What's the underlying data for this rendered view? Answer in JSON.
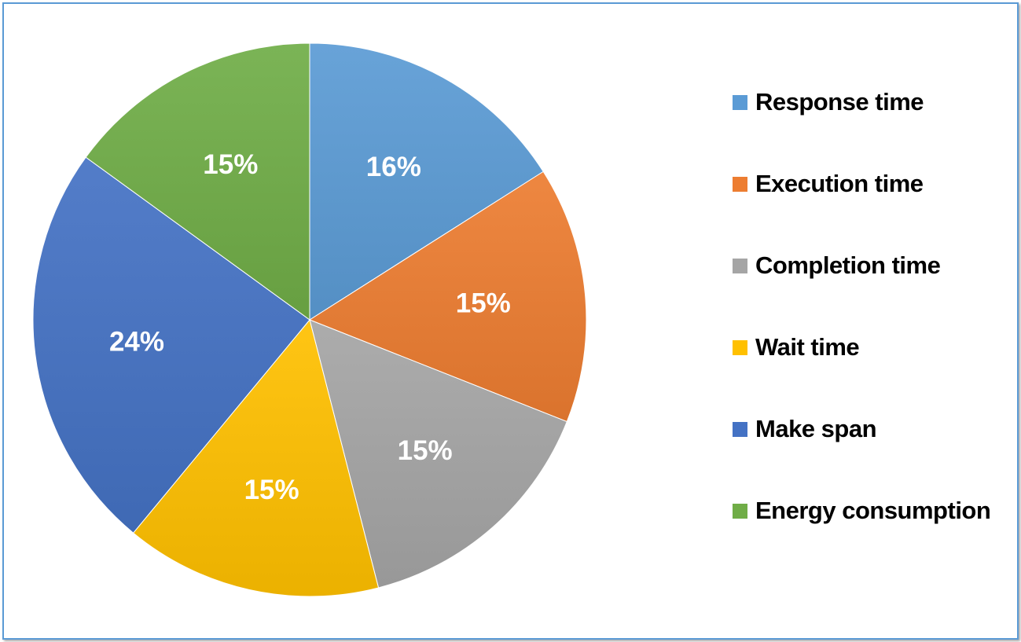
{
  "chart_data": {
    "type": "pie",
    "title": "",
    "start_angle_deg": 0,
    "direction": "clockwise",
    "legend_position": "right",
    "slices": [
      {
        "label": "Response time",
        "value": 16,
        "display": "16%",
        "color": "#5b9bd5"
      },
      {
        "label": "Execution time",
        "value": 15,
        "display": "15%",
        "color": "#ed7d31"
      },
      {
        "label": "Completion time",
        "value": 15,
        "display": "15%",
        "color": "#a5a5a5"
      },
      {
        "label": "Wait time",
        "value": 15,
        "display": "15%",
        "color": "#ffc000"
      },
      {
        "label": "Make span",
        "value": 24,
        "display": "24%",
        "color": "#4472c4"
      },
      {
        "label": "Energy consumption",
        "value": 15,
        "display": "15%",
        "color": "#70ad47"
      }
    ]
  },
  "legend": {
    "items": [
      {
        "label": "Response time",
        "color": "#5b9bd5"
      },
      {
        "label": "Execution time",
        "color": "#ed7d31"
      },
      {
        "label": "Completion time",
        "color": "#a5a5a5"
      },
      {
        "label": "Wait time",
        "color": "#ffc000"
      },
      {
        "label": "Make span",
        "color": "#4472c4"
      },
      {
        "label": "Energy consumption",
        "color": "#70ad47"
      }
    ]
  }
}
